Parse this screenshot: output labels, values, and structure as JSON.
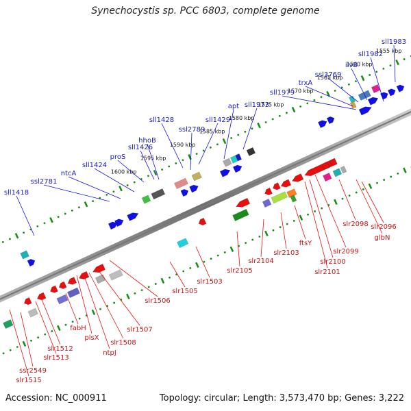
{
  "title": "Synechocystis sp. PCC 6803, complete genome",
  "footer": {
    "accession": "Accession: NC_000911",
    "topology": "Topology: circular; Length: 3,573,470 bp; Genes: 3,222"
  },
  "kbp_labels": [
    "1555 kbp",
    "1560 kbp",
    "1565 kbp",
    "1570 kbp",
    "1575 kbp",
    "1580 kbp",
    "1585 kbp",
    "1590 kbp",
    "1595 kbp",
    "1600 kbp"
  ],
  "top_genes": [
    "sll1983",
    "sll1982",
    "ilvB",
    "ssl3769",
    "trxA",
    "sll1979",
    "sll1973",
    "apt",
    "sll1429",
    "ssl2789",
    "sll1428",
    "hhoB",
    "sll1426",
    "proS",
    "sll1424",
    "ntcA",
    "ssl2781",
    "sll1418"
  ],
  "bottom_genes": [
    "slr2096",
    "glbN",
    "slr2098",
    "slr2099",
    "slr2100",
    "slr2101",
    "ftsY",
    "slr2103",
    "slr2104",
    "slr2105",
    "slr1503",
    "slr1505",
    "slr1506",
    "slr1507",
    "slr1508",
    "ntpJ",
    "plsX",
    "fabH",
    "slr1512",
    "slr1513",
    "ssr2549",
    "slr1515"
  ],
  "colors": {
    "forward": "#1010e6",
    "reverse": "#e61010",
    "backbone": "#8c8c8c",
    "tick_top": "#1a8c1a",
    "tick_bottom": "#1a8c1a"
  }
}
